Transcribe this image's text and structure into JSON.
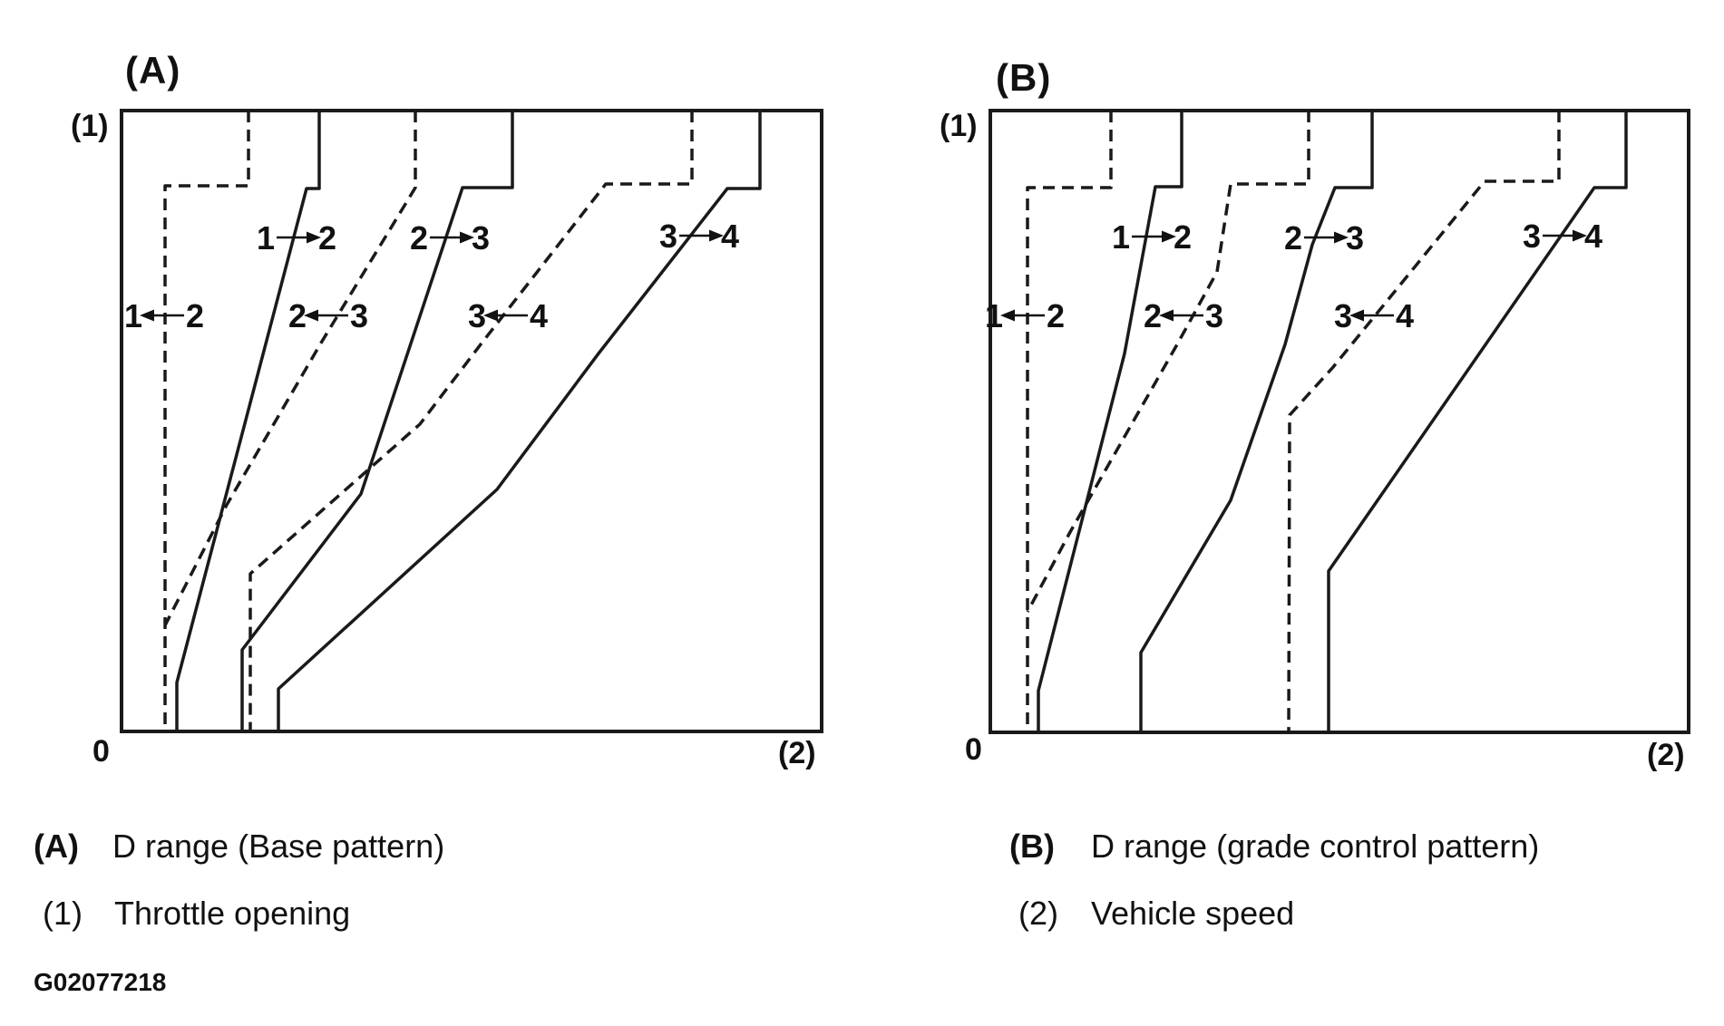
{
  "figure_id": "G02077218",
  "ink_color": "#1a1a1a",
  "background_color": "#ffffff",
  "captions": {
    "a_key": "(A)",
    "a_text": "D range (Base pattern)",
    "y1_key": "(1)",
    "y1_text": "Throttle opening",
    "b_key": "(B)",
    "b_text": "D range (grade control pattern)",
    "x2_key": "(2)",
    "x2_text": "Vehicle speed"
  },
  "chart_data": [
    {
      "id": "A",
      "type": "line",
      "title": "(A)",
      "caption": "D range (Base pattern)",
      "ylabel_symbol": "(1)",
      "xlabel_symbol": "(2)",
      "origin_label": "0",
      "xlabel_meaning": "Vehicle speed",
      "ylabel_meaning": "Throttle opening",
      "xlim": [
        0,
        772
      ],
      "ylim": [
        0,
        685
      ],
      "y_direction": "down (throttle opening increases upward; units relative, plot px)",
      "grid": false,
      "legend": "solid = upshift, dashed = downshift",
      "series": [
        {
          "key": "up-1-2",
          "name": "1→2",
          "style": "solid",
          "points": [
            [
              218,
              0
            ],
            [
              218,
              86
            ],
            [
              204,
              86
            ],
            [
              61,
              631
            ],
            [
              61,
              685
            ]
          ]
        },
        {
          "key": "down-1-2",
          "name": "1←2",
          "style": "dashed",
          "points": [
            [
              140,
              0
            ],
            [
              140,
              83
            ],
            [
              48,
              83
            ],
            [
              48,
              685
            ]
          ]
        },
        {
          "key": "up-2-3",
          "name": "2→3",
          "style": "solid",
          "points": [
            [
              431,
              0
            ],
            [
              431,
              85
            ],
            [
              376,
              85
            ],
            [
              264,
              423
            ],
            [
              133,
              595
            ],
            [
              133,
              685
            ]
          ]
        },
        {
          "key": "down-2-3",
          "name": "2←3",
          "style": "dashed",
          "points": [
            [
              324,
              0
            ],
            [
              324,
              85
            ],
            [
              219,
              258
            ],
            [
              116,
              435
            ],
            [
              48,
              568
            ]
          ]
        },
        {
          "key": "up-3-4",
          "name": "3→4",
          "style": "solid",
          "points": [
            [
              704,
              0
            ],
            [
              704,
              86
            ],
            [
              668,
              86
            ],
            [
              526,
              268
            ],
            [
              414,
              418
            ],
            [
              173,
              638
            ],
            [
              173,
              685
            ]
          ]
        },
        {
          "key": "down-3-4",
          "name": "3←4",
          "style": "dashed",
          "points": [
            [
              629,
              0
            ],
            [
              629,
              81
            ],
            [
              534,
              81
            ],
            [
              396,
              258
            ],
            [
              329,
              346
            ],
            [
              142,
              511
            ],
            [
              142,
              685
            ]
          ]
        }
      ],
      "shift_labels": [
        {
          "a": "1",
          "b": "2",
          "dir": "right",
          "x": 193,
          "y": 140
        },
        {
          "a": "2",
          "b": "3",
          "dir": "right",
          "x": 362,
          "y": 140
        },
        {
          "a": "3",
          "b": "4",
          "dir": "right",
          "x": 637,
          "y": 138
        },
        {
          "a": "1",
          "b": "2",
          "dir": "left",
          "x": 47,
          "y": 226
        },
        {
          "a": "2",
          "b": "3",
          "dir": "left",
          "x": 228,
          "y": 226
        },
        {
          "a": "3",
          "b": "4",
          "dir": "left",
          "x": 426,
          "y": 226
        }
      ]
    },
    {
      "id": "B",
      "type": "line",
      "title": "(B)",
      "caption": "D range (grade control pattern)",
      "ylabel_symbol": "(1)",
      "xlabel_symbol": "(2)",
      "origin_label": "0",
      "xlabel_meaning": "Vehicle speed",
      "ylabel_meaning": "Throttle opening",
      "xlim": [
        0,
        770
      ],
      "ylim": [
        0,
        686
      ],
      "y_direction": "down (throttle opening increases upward; units relative, plot px)",
      "grid": false,
      "legend": "solid = upshift, dashed = downshift",
      "series": [
        {
          "key": "up-1-2",
          "name": "1→2",
          "style": "solid",
          "points": [
            [
              211,
              0
            ],
            [
              211,
              84
            ],
            [
              182,
              84
            ],
            [
              148,
              268
            ],
            [
              53,
              640
            ],
            [
              53,
              686
            ]
          ]
        },
        {
          "key": "down-1-2",
          "name": "1←2",
          "style": "dashed",
          "points": [
            [
              133,
              0
            ],
            [
              133,
              85
            ],
            [
              41,
              85
            ],
            [
              41,
              686
            ]
          ]
        },
        {
          "key": "up-2-3",
          "name": "2→3",
          "style": "solid",
          "points": [
            [
              421,
              0
            ],
            [
              421,
              85
            ],
            [
              380,
              85
            ],
            [
              355,
              148
            ],
            [
              325,
              258
            ],
            [
              265,
              430
            ],
            [
              166,
              598
            ],
            [
              166,
              686
            ]
          ]
        },
        {
          "key": "down-2-3",
          "name": "2←3",
          "style": "dashed",
          "points": [
            [
              351,
              0
            ],
            [
              351,
              81
            ],
            [
              265,
              81
            ],
            [
              250,
              178
            ],
            [
              206,
              258
            ],
            [
              88,
              465
            ],
            [
              41,
              553
            ]
          ]
        },
        {
          "key": "up-3-4",
          "name": "3→4",
          "style": "solid",
          "points": [
            [
              701,
              0
            ],
            [
              701,
              85
            ],
            [
              666,
              85
            ],
            [
              373,
              508
            ],
            [
              373,
              686
            ]
          ]
        },
        {
          "key": "down-3-4",
          "name": "3←4",
          "style": "dashed",
          "points": [
            [
              627,
              0
            ],
            [
              627,
              78
            ],
            [
              545,
              78
            ],
            [
              378,
              283
            ],
            [
              330,
              336
            ],
            [
              329,
              686
            ]
          ]
        }
      ],
      "shift_labels": [
        {
          "a": "1",
          "b": "2",
          "dir": "right",
          "x": 178,
          "y": 139
        },
        {
          "a": "2",
          "b": "3",
          "dir": "right",
          "x": 368,
          "y": 140
        },
        {
          "a": "3",
          "b": "4",
          "dir": "right",
          "x": 631,
          "y": 138
        },
        {
          "a": "1",
          "b": "2",
          "dir": "left",
          "x": 38,
          "y": 226
        },
        {
          "a": "2",
          "b": "3",
          "dir": "left",
          "x": 213,
          "y": 226
        },
        {
          "a": "3",
          "b": "4",
          "dir": "left",
          "x": 423,
          "y": 226
        }
      ]
    }
  ]
}
